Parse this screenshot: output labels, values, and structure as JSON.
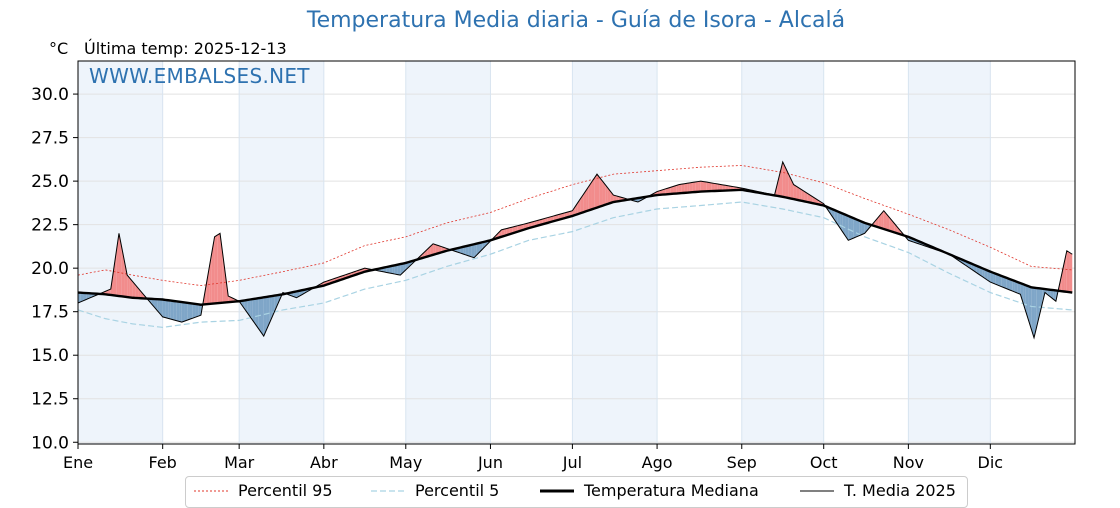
{
  "title": "Temperatura Media diaria - Guía de Isora - Alcalá",
  "unit_label": "°C",
  "last_temp_label": "Última temp: 2025-12-13",
  "watermark": "WWW.EMBALSES.NET",
  "colors": {
    "title": "#2e72b0",
    "p95": "#e0342a",
    "p5": "#a9d3e3",
    "median": "#000000",
    "t2025": "#000000",
    "above_fill": "#f28c8c",
    "below_fill": "#7fa6c8",
    "month_shade": "#eef4fb"
  },
  "legend": [
    {
      "key": "p95",
      "label": "Percentil 95"
    },
    {
      "key": "p5",
      "label": "Percentil 5"
    },
    {
      "key": "median",
      "label": "Temperatura Mediana"
    },
    {
      "key": "t2025",
      "label": "T. Media 2025"
    }
  ],
  "chart_data": {
    "type": "line",
    "xlabel": "",
    "ylabel": "°C",
    "ylim": [
      9.9,
      31.9
    ],
    "xlim": [
      0,
      365
    ],
    "yticks": [
      "10.0",
      "12.5",
      "15.0",
      "17.5",
      "20.0",
      "22.5",
      "25.0",
      "27.5",
      "30.0"
    ],
    "ytick_values": [
      10.0,
      12.5,
      15.0,
      17.5,
      20.0,
      22.5,
      25.0,
      27.5,
      30.0
    ],
    "months": [
      "Ene",
      "Feb",
      "Mar",
      "Abr",
      "May",
      "Jun",
      "Jul",
      "Ago",
      "Sep",
      "Oct",
      "Nov",
      "Dic"
    ],
    "month_starts": [
      0,
      31,
      59,
      90,
      120,
      151,
      181,
      212,
      243,
      273,
      304,
      334
    ],
    "grid": true,
    "series_note": "daily values interpolated from monthly key points",
    "series": {
      "median": {
        "name": "Temperatura Mediana",
        "key_days": [
          0,
          10,
          20,
          31,
          45,
          59,
          75,
          90,
          105,
          120,
          135,
          151,
          165,
          181,
          196,
          212,
          228,
          243,
          258,
          273,
          288,
          304,
          319,
          334,
          349,
          364
        ],
        "values": [
          18.6,
          18.5,
          18.3,
          18.2,
          17.9,
          18.1,
          18.5,
          19.0,
          19.8,
          20.3,
          21.0,
          21.6,
          22.3,
          23.0,
          23.8,
          24.2,
          24.4,
          24.5,
          24.1,
          23.6,
          22.6,
          21.8,
          20.8,
          19.8,
          18.9,
          18.6
        ]
      },
      "p95": {
        "name": "Percentil 95",
        "key_days": [
          0,
          10,
          20,
          31,
          45,
          59,
          75,
          90,
          105,
          120,
          135,
          151,
          165,
          181,
          196,
          212,
          228,
          243,
          258,
          273,
          288,
          304,
          319,
          334,
          349,
          364
        ],
        "values": [
          19.6,
          19.9,
          19.6,
          19.3,
          19.0,
          19.3,
          19.8,
          20.3,
          21.3,
          21.8,
          22.6,
          23.2,
          24.0,
          24.8,
          25.4,
          25.6,
          25.8,
          25.9,
          25.5,
          24.9,
          24.0,
          23.1,
          22.2,
          21.2,
          20.1,
          19.9
        ]
      },
      "p5": {
        "name": "Percentil 5",
        "key_days": [
          0,
          10,
          20,
          31,
          45,
          59,
          75,
          90,
          105,
          120,
          135,
          151,
          165,
          181,
          196,
          212,
          228,
          243,
          258,
          273,
          288,
          304,
          319,
          334,
          349,
          364
        ],
        "values": [
          17.6,
          17.1,
          16.8,
          16.6,
          16.9,
          17.0,
          17.6,
          18.0,
          18.8,
          19.3,
          20.1,
          20.8,
          21.6,
          22.1,
          22.9,
          23.4,
          23.6,
          23.8,
          23.4,
          22.9,
          21.8,
          20.9,
          19.7,
          18.6,
          17.8,
          17.6
        ]
      },
      "t2025": {
        "name": "T. Media 2025",
        "key_days": [
          0,
          6,
          12,
          15,
          18,
          25,
          31,
          38,
          45,
          50,
          52,
          55,
          59,
          68,
          75,
          80,
          90,
          105,
          118,
          130,
          145,
          155,
          165,
          181,
          190,
          196,
          205,
          212,
          220,
          228,
          243,
          255,
          258,
          262,
          273,
          282,
          288,
          295,
          304,
          319,
          334,
          345,
          350,
          354,
          358,
          362,
          364
        ],
        "values": [
          18.0,
          18.4,
          18.8,
          22.0,
          19.6,
          18.3,
          17.2,
          16.9,
          17.3,
          21.8,
          22.0,
          18.4,
          18.1,
          16.1,
          18.6,
          18.3,
          19.2,
          20.0,
          19.6,
          21.4,
          20.6,
          22.2,
          22.6,
          23.3,
          25.4,
          24.2,
          23.8,
          24.4,
          24.8,
          25.0,
          24.6,
          24.2,
          26.1,
          24.8,
          23.7,
          21.6,
          22.0,
          23.3,
          21.6,
          20.8,
          19.2,
          18.5,
          16.0,
          18.6,
          18.1,
          21.0,
          20.8
        ]
      }
    }
  }
}
